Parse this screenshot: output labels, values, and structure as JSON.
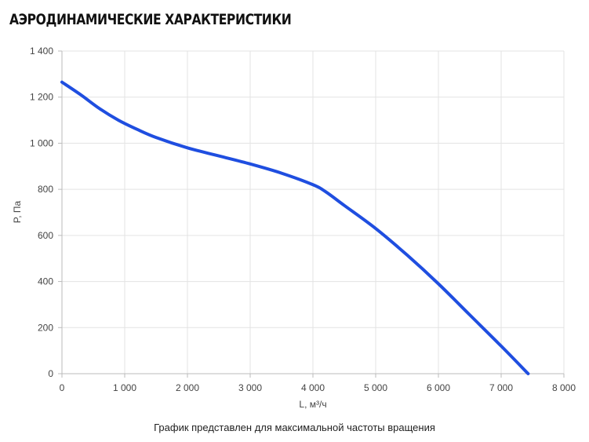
{
  "chart_data": {
    "type": "line",
    "title": "АЭРОДИНАМИЧЕСКИЕ ХАРАКТЕРИСТИКИ",
    "xlabel": "L, м³/ч",
    "ylabel": "P, Па",
    "xlim": [
      0,
      8000
    ],
    "ylim": [
      0,
      1400
    ],
    "xticks": [
      0,
      1000,
      2000,
      3000,
      4000,
      5000,
      6000,
      7000,
      8000
    ],
    "xtick_labels": [
      "0",
      "1 000",
      "2 000",
      "3 000",
      "4 000",
      "5 000",
      "6 000",
      "7 000",
      "8 000"
    ],
    "yticks": [
      0,
      200,
      400,
      600,
      800,
      1000,
      1200,
      1400
    ],
    "ytick_labels": [
      "0",
      "200",
      "400",
      "600",
      "800",
      "1 000",
      "1 200",
      "1 400"
    ],
    "grid": true,
    "series": [
      {
        "color": "#1f4ee0",
        "x": [
          0,
          300,
          600,
          900,
          1200,
          1500,
          2000,
          2500,
          3000,
          3500,
          4000,
          4200,
          4500,
          5000,
          5500,
          6000,
          6500,
          7000,
          7430
        ],
        "y": [
          1265,
          1210,
          1150,
          1100,
          1060,
          1025,
          980,
          945,
          910,
          870,
          820,
          790,
          730,
          630,
          515,
          390,
          255,
          120,
          0
        ]
      }
    ],
    "caption": "График представлен для максимальной частоты вращения"
  }
}
